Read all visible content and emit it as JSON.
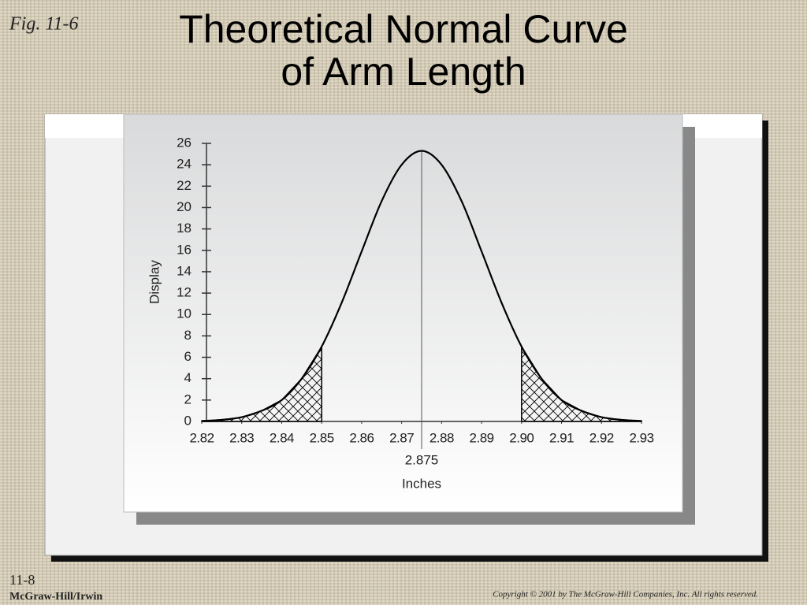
{
  "figure_label": "Fig. 11-6",
  "slide_number": "11-8",
  "publisher": "McGraw-Hill/Irwin",
  "copyright": "Copyright © 2001 by The McGraw-Hill Companies, Inc.  All rights reserved.",
  "chart_data": {
    "type": "line",
    "title": "Theoretical Normal Curve of Arm Length",
    "x_label": "Inches",
    "y_label": "Display",
    "x": [
      2.82,
      2.825,
      2.83,
      2.835,
      2.84,
      2.845,
      2.85,
      2.855,
      2.86,
      2.865,
      2.87,
      2.875,
      2.88,
      2.885,
      2.89,
      2.895,
      2.9,
      2.905,
      2.91,
      2.915,
      2.92,
      2.925,
      2.93
    ],
    "values": [
      0.05,
      0.15,
      0.4,
      1.0,
      2.0,
      4.0,
      7.0,
      11.1,
      15.9,
      20.6,
      24.0,
      25.3,
      24.0,
      20.6,
      15.9,
      11.1,
      7.0,
      4.0,
      2.0,
      1.0,
      0.4,
      0.15,
      0.05
    ],
    "color": "#000000",
    "xlim": [
      2.82,
      2.93
    ],
    "xticks": [
      2.82,
      2.83,
      2.84,
      2.85,
      2.86,
      2.87,
      2.88,
      2.89,
      {
        "value": 2.9,
        "label": "2.90"
      },
      2.91,
      2.92,
      2.93
    ],
    "ylim": [
      0,
      26
    ],
    "yticks": [
      0,
      2,
      4,
      6,
      8,
      10,
      12,
      14,
      16,
      18,
      20,
      22,
      24,
      26
    ],
    "mean_line": 2.875,
    "shaded_regions": [
      [
        2.82,
        2.85
      ],
      [
        2.9,
        2.93
      ]
    ]
  }
}
